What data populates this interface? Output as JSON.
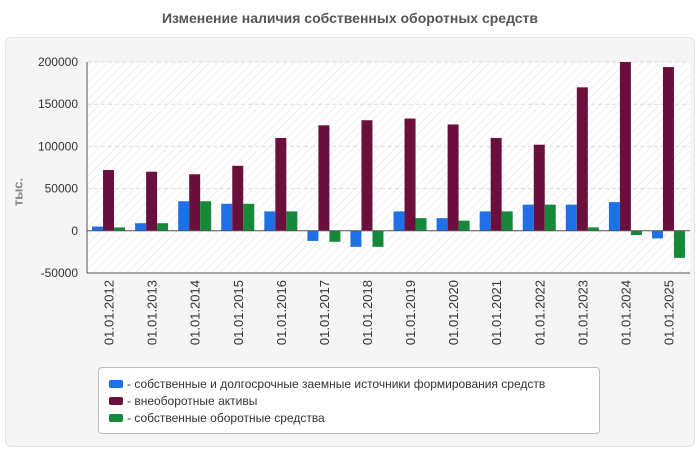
{
  "chart_data": {
    "type": "bar",
    "title": "Изменение наличия собственных оборотных средств",
    "ylabel": "тыс.",
    "xlabel": "",
    "categories": [
      "01.01.2012",
      "01.01.2013",
      "01.01.2014",
      "01.01.2015",
      "01.01.2016",
      "01.01.2017",
      "01.01.2018",
      "01.01.2019",
      "01.01.2020",
      "01.01.2021",
      "01.01.2022",
      "01.01.2023",
      "01.01.2024",
      "01.01.2025"
    ],
    "ylim": [
      -50000,
      200000
    ],
    "yticks": [
      200000,
      150000,
      100000,
      50000,
      0,
      -50000
    ],
    "ytick_labels": [
      "200000",
      "150000",
      "100000",
      "50000",
      "0",
      "-50000"
    ],
    "grid": true,
    "legend_position": "bottom",
    "series": [
      {
        "name": "- собственные и долгосрочные заемные источники формирования средств",
        "color": "#1f6fe6",
        "values": [
          5000,
          9000,
          35000,
          32000,
          23000,
          -12000,
          -19000,
          23000,
          15000,
          23000,
          31000,
          31000,
          34000,
          -9000
        ]
      },
      {
        "name": "- внеоборотные активы",
        "color": "#6b0f3c",
        "values": [
          72000,
          70000,
          67000,
          77000,
          110000,
          125000,
          131000,
          133000,
          126000,
          110000,
          102000,
          170000,
          200000,
          194000
        ]
      },
      {
        "name": "- собственные оборотные средства",
        "color": "#16883a",
        "values": [
          4000,
          9000,
          35000,
          32000,
          23000,
          -13000,
          -19000,
          15000,
          12000,
          23000,
          31000,
          4000,
          -5000,
          -32000
        ]
      }
    ]
  }
}
